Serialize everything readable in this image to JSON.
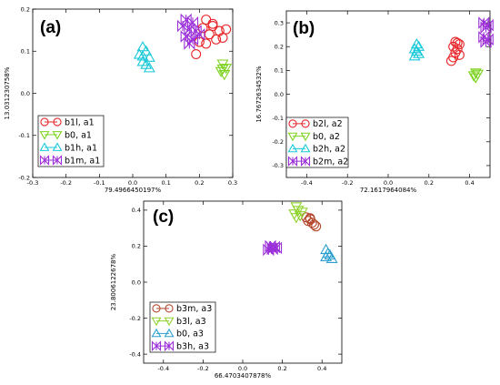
{
  "chart_data": [
    {
      "type": "scatter",
      "panel_label": "(a)",
      "xlabel": "79.4966450197%",
      "ylabel": "13.031230758%",
      "xlim": [
        -0.3,
        0.3
      ],
      "ylim": [
        -0.2,
        0.2
      ],
      "xticks": [
        -0.3,
        -0.2,
        -0.1,
        0.0,
        0.1,
        0.2,
        0.3
      ],
      "xtick_labels": [
        "-0.3",
        "-0.2",
        "-0.1",
        "0.0",
        "0.1",
        "0.2",
        "0.3"
      ],
      "yticks": [
        -0.2,
        -0.1,
        0.0,
        0.1,
        0.2
      ],
      "ytick_labels": [
        "-0.2",
        "-0.1",
        "0.0",
        "0.1",
        "0.2"
      ],
      "legend_position": "lower-left",
      "series": [
        {
          "name": "b1l, a1",
          "marker": "circle",
          "color": "#e8262a",
          "points": [
            [
              0.22,
              0.175
            ],
            [
              0.24,
              0.165
            ],
            [
              0.21,
              0.155
            ],
            [
              0.26,
              0.148
            ],
            [
              0.28,
              0.152
            ],
            [
              0.23,
              0.14
            ],
            [
              0.25,
              0.128
            ],
            [
              0.27,
              0.132
            ],
            [
              0.2,
              0.122
            ],
            [
              0.22,
              0.118
            ],
            [
              0.19,
              0.093
            ],
            [
              0.24,
              0.16
            ]
          ]
        },
        {
          "name": "b0, a1",
          "marker": "triangle-down",
          "color": "#7ed321",
          "points": [
            [
              0.27,
              0.07
            ],
            [
              0.28,
              0.06
            ],
            [
              0.265,
              0.052
            ],
            [
              0.275,
              0.045
            ],
            [
              0.27,
              0.058
            ]
          ]
        },
        {
          "name": "b1h, a1",
          "marker": "triangle-up",
          "color": "#19c9d9",
          "points": [
            [
              0.03,
              0.11
            ],
            [
              0.04,
              0.1
            ],
            [
              0.02,
              0.092
            ],
            [
              0.05,
              0.085
            ],
            [
              0.03,
              0.075
            ],
            [
              0.04,
              0.068
            ],
            [
              0.05,
              0.06
            ],
            [
              0.03,
              0.088
            ]
          ]
        },
        {
          "name": "b1m, a1",
          "marker": "bowtie",
          "color": "#9b2fd8",
          "points": [
            [
              0.16,
              0.175
            ],
            [
              0.18,
              0.168
            ],
            [
              0.15,
              0.16
            ],
            [
              0.17,
              0.152
            ],
            [
              0.19,
              0.148
            ],
            [
              0.16,
              0.135
            ],
            [
              0.18,
              0.128
            ],
            [
              0.2,
              0.14
            ],
            [
              0.17,
              0.118
            ]
          ]
        }
      ]
    },
    {
      "type": "scatter",
      "panel_label": "(b)",
      "xlabel": "72.1617964084%",
      "ylabel": "16.7672634532%",
      "xlim": [
        -0.5,
        0.5
      ],
      "ylim": [
        -0.35,
        0.35
      ],
      "xticks": [
        -0.4,
        -0.2,
        0.0,
        0.2,
        0.4
      ],
      "xtick_labels": [
        "-0.4",
        "-0.2",
        "0.0",
        "0.2",
        "0.4"
      ],
      "yticks": [
        -0.3,
        -0.2,
        -0.1,
        0.0,
        0.1,
        0.2,
        0.3
      ],
      "ytick_labels": [
        "-0.3",
        "-0.2",
        "-0.1",
        "0.0",
        "0.1",
        "0.2",
        "0.3"
      ],
      "legend_position": "lower-left",
      "series": [
        {
          "name": "b2l, a2",
          "marker": "circle",
          "color": "#e8262a",
          "points": [
            [
              0.33,
              0.22
            ],
            [
              0.35,
              0.21
            ],
            [
              0.32,
              0.2
            ],
            [
              0.34,
              0.19
            ],
            [
              0.33,
              0.175
            ],
            [
              0.35,
              0.165
            ],
            [
              0.32,
              0.155
            ],
            [
              0.31,
              0.14
            ],
            [
              0.34,
              0.215
            ]
          ]
        },
        {
          "name": "b0, a2",
          "marker": "triangle-down",
          "color": "#7ed321",
          "points": [
            [
              0.43,
              0.09
            ],
            [
              0.44,
              0.085
            ],
            [
              0.42,
              0.078
            ],
            [
              0.43,
              0.07
            ]
          ]
        },
        {
          "name": "b2h, a2",
          "marker": "triangle-up",
          "color": "#19c9d9",
          "points": [
            [
              0.14,
              0.21
            ],
            [
              0.15,
              0.2
            ],
            [
              0.13,
              0.19
            ],
            [
              0.14,
              0.18
            ],
            [
              0.15,
              0.17
            ],
            [
              0.13,
              0.16
            ]
          ]
        },
        {
          "name": "b2m, a2",
          "marker": "bowtie",
          "color": "#9b2fd8",
          "points": [
            [
              0.47,
              0.3
            ],
            [
              0.49,
              0.29
            ],
            [
              0.48,
              0.28
            ],
            [
              0.47,
              0.24
            ],
            [
              0.49,
              0.23
            ],
            [
              0.48,
              0.22
            ]
          ]
        }
      ]
    },
    {
      "type": "scatter",
      "panel_label": "(c)",
      "xlabel": "66.4703407878%",
      "ylabel": "23.8006122678%",
      "xlim": [
        -0.5,
        0.5
      ],
      "ylim": [
        -0.45,
        0.45
      ],
      "xticks": [
        -0.4,
        -0.2,
        0.0,
        0.2,
        0.4
      ],
      "xtick_labels": [
        "-0.4",
        "-0.2",
        "0.0",
        "0.2",
        "0.4"
      ],
      "yticks": [
        -0.4,
        -0.2,
        0.0,
        0.2,
        0.4
      ],
      "ytick_labels": [
        "-0.4",
        "-0.2",
        "0.0",
        "0.2",
        "0.4"
      ],
      "legend_position": "lower-left",
      "series": [
        {
          "name": "b3m, a3",
          "marker": "circle",
          "color": "#b5472d",
          "points": [
            [
              0.32,
              0.36
            ],
            [
              0.34,
              0.35
            ],
            [
              0.33,
              0.34
            ],
            [
              0.35,
              0.33
            ],
            [
              0.36,
              0.32
            ],
            [
              0.37,
              0.31
            ],
            [
              0.34,
              0.355
            ]
          ]
        },
        {
          "name": "b3l, a3",
          "marker": "triangle-down",
          "color": "#8fd32a",
          "points": [
            [
              0.27,
              0.42
            ],
            [
              0.28,
              0.4
            ],
            [
              0.26,
              0.38
            ],
            [
              0.29,
              0.37
            ],
            [
              0.27,
              0.36
            ],
            [
              0.3,
              0.39
            ]
          ]
        },
        {
          "name": "b0, a3",
          "marker": "triangle-up",
          "color": "#2a9fd0",
          "points": [
            [
              0.42,
              0.18
            ],
            [
              0.43,
              0.16
            ],
            [
              0.44,
              0.15
            ],
            [
              0.42,
              0.14
            ],
            [
              0.45,
              0.13
            ]
          ]
        },
        {
          "name": "b3h, a3",
          "marker": "bowtie",
          "color": "#9b2fd8",
          "points": [
            [
              0.14,
              0.2
            ],
            [
              0.16,
              0.195
            ],
            [
              0.15,
              0.185
            ],
            [
              0.13,
              0.18
            ],
            [
              0.17,
              0.19
            ]
          ]
        }
      ]
    }
  ]
}
